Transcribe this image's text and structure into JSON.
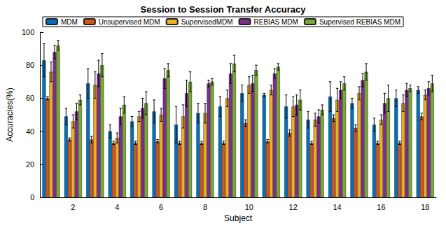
{
  "chart_data": {
    "type": "bar",
    "title": "Session to Session Transfer Accuracy",
    "x_label": "Subject",
    "y_label": "Accuracies(%)",
    "categories": [
      null,
      "2",
      null,
      "4",
      null,
      "6",
      null,
      "8",
      null,
      "10",
      null,
      "12",
      null,
      "14",
      null,
      "16",
      null,
      "18"
    ],
    "series": [
      {
        "name": "MDM",
        "color": "#0072BD",
        "values": [
          83,
          49,
          69,
          40,
          46,
          52,
          44,
          51,
          55,
          63,
          62,
          55,
          47,
          61,
          57,
          44,
          60,
          65
        ],
        "errors": [
          10,
          5,
          9,
          4,
          3,
          7,
          11,
          6,
          6,
          5,
          1,
          7,
          5,
          9,
          3,
          4,
          5,
          2
        ]
      },
      {
        "name": "Unsupervised MDM",
        "color": "#D95319",
        "values": [
          60,
          35,
          35,
          33,
          33,
          34,
          33,
          33,
          33,
          45,
          34,
          39,
          33,
          48,
          42,
          33,
          33,
          49
        ],
        "errors": [
          1,
          1,
          2,
          1,
          1,
          1,
          1,
          1,
          1,
          2,
          1,
          2,
          1,
          2,
          2,
          1,
          1,
          2
        ]
      },
      {
        "name": "SupervisedMDM",
        "color": "#EDB120",
        "values": [
          76,
          46,
          68,
          36,
          49,
          50,
          49,
          51,
          60,
          68,
          65,
          55,
          47,
          59,
          63,
          47,
          57,
          62
        ],
        "errors": [
          6,
          4,
          8,
          3,
          3,
          4,
          7,
          6,
          5,
          5,
          3,
          6,
          4,
          7,
          4,
          3,
          5,
          3
        ]
      },
      {
        "name": "REBIAS MDM",
        "color": "#7E2F8E",
        "values": [
          88,
          52,
          75,
          49,
          54,
          72,
          63,
          69,
          75,
          69,
          75,
          56,
          49,
          65,
          71,
          57,
          65,
          66
        ],
        "errors": [
          4,
          5,
          8,
          5,
          6,
          6,
          8,
          2,
          6,
          5,
          3,
          6,
          4,
          5,
          4,
          6,
          4,
          4
        ]
      },
      {
        "name": "Supervised REBIAS MDM",
        "color": "#77AC30",
        "values": [
          92,
          59,
          80,
          56,
          57,
          77,
          70,
          70,
          81,
          77,
          79,
          59,
          53,
          69,
          76,
          60,
          66,
          69
        ],
        "errors": [
          3,
          3,
          7,
          5,
          7,
          4,
          6,
          2,
          5,
          3,
          2,
          6,
          3,
          4,
          5,
          8,
          2,
          5
        ]
      }
    ],
    "ylim": [
      0,
      100
    ],
    "yticks": [
      0,
      20,
      40,
      60,
      80,
      100
    ],
    "grid": false,
    "legend": "top"
  }
}
